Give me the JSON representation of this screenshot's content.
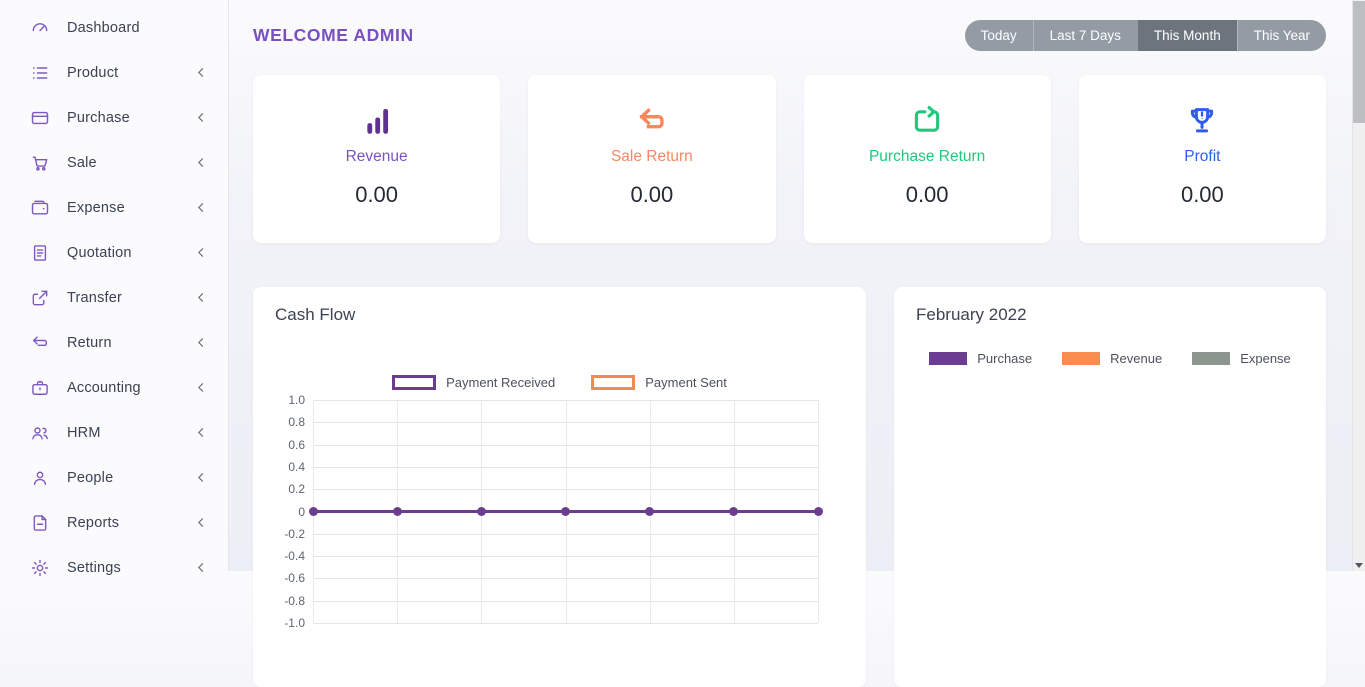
{
  "page": {
    "title": "WELCOME ADMIN"
  },
  "filters": {
    "items": [
      {
        "label": "Today",
        "active": false
      },
      {
        "label": "Last 7 Days",
        "active": false
      },
      {
        "label": "This Month",
        "active": true
      },
      {
        "label": "This Year",
        "active": false
      }
    ]
  },
  "sidebar": {
    "items": [
      {
        "label": "Dashboard",
        "icon": "dashboard-icon",
        "has_submenu": false
      },
      {
        "label": "Product",
        "icon": "product-list-icon",
        "has_submenu": true
      },
      {
        "label": "Purchase",
        "icon": "credit-card-icon",
        "has_submenu": true
      },
      {
        "label": "Sale",
        "icon": "cart-icon",
        "has_submenu": true
      },
      {
        "label": "Expense",
        "icon": "wallet-icon",
        "has_submenu": true
      },
      {
        "label": "Quotation",
        "icon": "document-icon",
        "has_submenu": true
      },
      {
        "label": "Transfer",
        "icon": "share-icon",
        "has_submenu": true
      },
      {
        "label": "Return",
        "icon": "undo-icon",
        "has_submenu": true
      },
      {
        "label": "Accounting",
        "icon": "briefcase-icon",
        "has_submenu": true
      },
      {
        "label": "HRM",
        "icon": "users-icon",
        "has_submenu": true
      },
      {
        "label": "People",
        "icon": "user-icon",
        "has_submenu": true
      },
      {
        "label": "Reports",
        "icon": "report-icon",
        "has_submenu": true
      },
      {
        "label": "Settings",
        "icon": "gear-icon",
        "has_submenu": true
      }
    ]
  },
  "stats": {
    "cards": [
      {
        "label": "Revenue",
        "value": "0.00",
        "icon": "bar-chart-icon",
        "color": "#5e3192"
      },
      {
        "label": "Sale Return",
        "value": "0.00",
        "icon": "sale-return-icon",
        "color": "#f8875f"
      },
      {
        "label": "Purchase Return",
        "value": "0.00",
        "icon": "purchase-return-icon",
        "color": "#1fc97c"
      },
      {
        "label": "Profit",
        "value": "0.00",
        "icon": "trophy-icon",
        "color": "#2f5cf0"
      }
    ]
  },
  "cashflow": {
    "title": "Cash Flow",
    "legend": [
      {
        "label": "Payment Received",
        "color": "#6a3d8f"
      },
      {
        "label": "Payment Sent",
        "color": "#ef8b4e"
      }
    ]
  },
  "monthly": {
    "title": "February 2022",
    "legend": [
      {
        "label": "Purchase",
        "color": "#6b3d92"
      },
      {
        "label": "Revenue",
        "color": "#f98d4e"
      },
      {
        "label": "Expense",
        "color": "#8c968e"
      }
    ]
  },
  "chart_data": [
    {
      "type": "line",
      "title": "Cash Flow",
      "x": [
        1,
        2,
        3,
        4,
        5,
        6,
        7
      ],
      "x_labels_visible": false,
      "yticks": [
        "1.0",
        "0.8",
        "0.6",
        "0.4",
        "0.2",
        "0",
        "-0.2",
        "-0.4",
        "-0.6",
        "-0.8",
        "-1.0"
      ],
      "ylim": [
        -1.0,
        1.0
      ],
      "grid": true,
      "legend_position": "top",
      "series": [
        {
          "name": "Payment Received",
          "color": "#6a3d8f",
          "values": [
            0,
            0,
            0,
            0,
            0,
            0,
            0
          ]
        },
        {
          "name": "Payment Sent",
          "color": "#ef8b4e",
          "values": [
            0,
            0,
            0,
            0,
            0,
            0,
            0
          ]
        }
      ]
    },
    {
      "type": "bar",
      "title": "February 2022",
      "categories": [],
      "values_visible": false,
      "legend_position": "top",
      "series": [
        {
          "name": "Purchase",
          "color": "#6b3d92",
          "values": []
        },
        {
          "name": "Revenue",
          "color": "#f98d4e",
          "values": []
        },
        {
          "name": "Expense",
          "color": "#8c968e",
          "values": []
        }
      ]
    }
  ]
}
